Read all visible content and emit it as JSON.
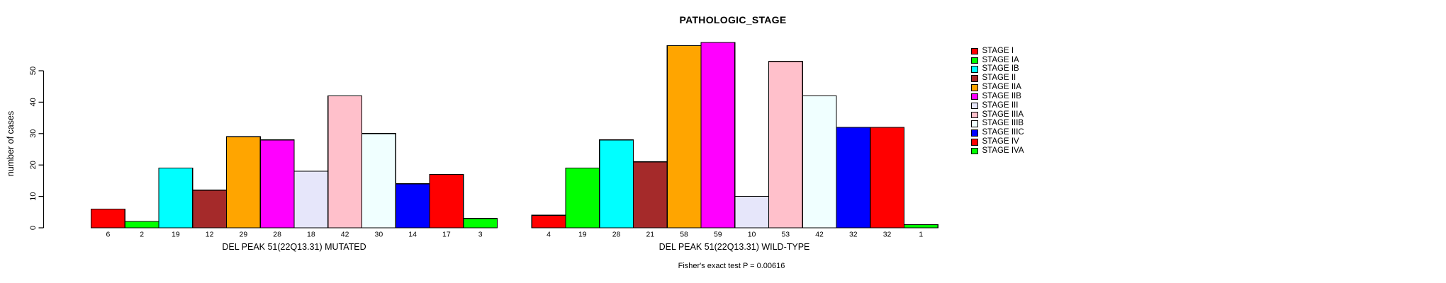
{
  "chart_data": {
    "type": "bar",
    "title": "PATHOLOGIC_STAGE",
    "ylabel": "number of cases",
    "y_ticks": [
      0,
      10,
      20,
      30,
      40,
      50
    ],
    "ylim": [
      0,
      59
    ],
    "grid": false,
    "legend_position": "right",
    "categories": [
      "STAGE I",
      "STAGE IA",
      "STAGE IB",
      "STAGE II",
      "STAGE IIA",
      "STAGE IIB",
      "STAGE III",
      "STAGE IIIA",
      "STAGE IIIB",
      "STAGE IIIC",
      "STAGE IV",
      "STAGE IVA"
    ],
    "colors": [
      "#FF0000",
      "#00FF00",
      "#00FFFF",
      "#A52A2A",
      "#FFA500",
      "#FF00FF",
      "#E6E6FA",
      "#FFC0CB",
      "#F0FFFF",
      "#0000FF",
      "#FF0000",
      "#00FF00"
    ],
    "groups": [
      {
        "key": "mutated",
        "label": "DEL PEAK 51(22Q13.31) MUTATED",
        "values": [
          6,
          2,
          19,
          12,
          29,
          28,
          18,
          42,
          30,
          14,
          17,
          3
        ]
      },
      {
        "key": "wild-type",
        "label": "DEL PEAK 51(22Q13.31) WILD-TYPE",
        "values": [
          4,
          19,
          28,
          21,
          58,
          59,
          10,
          53,
          42,
          32,
          32,
          1
        ]
      }
    ],
    "footer": "Fisher's exact test P = 0.00616"
  }
}
